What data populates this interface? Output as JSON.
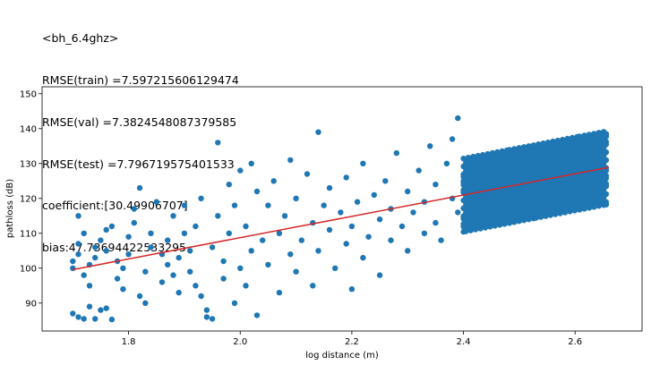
{
  "title_lines": [
    "<bh_6.4ghz>",
    "RMSE(train) =7.597215606129474",
    "RMSE(val) =7.3824548087379585",
    "RMSE(test) =7.796719575401533",
    "coefficient:[30.49906707]",
    "bias:47.73694422533295"
  ],
  "chart_data": {
    "type": "scatter",
    "xlabel": "log distance (m)",
    "ylabel": "pathloss (dB)",
    "xlim": [
      1.645,
      2.72
    ],
    "ylim": [
      82,
      152
    ],
    "xticks": [
      1.8,
      2.0,
      2.2,
      2.4,
      2.6
    ],
    "xtick_labels": [
      "1.8",
      "2.0",
      "2.2",
      "2.4",
      "2.6"
    ],
    "yticks": [
      90,
      100,
      110,
      120,
      130,
      140,
      150
    ],
    "ytick_labels": [
      "90",
      "100",
      "110",
      "120",
      "130",
      "140",
      "150"
    ],
    "grid": false,
    "series": [
      {
        "kind": "points",
        "color": "#1f77b4",
        "points": [
          [
            1.7,
            87
          ],
          [
            1.71,
            86
          ],
          [
            1.72,
            85.5
          ],
          [
            1.74,
            85.5
          ],
          [
            1.77,
            85.3
          ],
          [
            1.73,
            89
          ],
          [
            1.75,
            88
          ],
          [
            1.76,
            88.5
          ],
          [
            1.7,
            100
          ],
          [
            1.7,
            102
          ],
          [
            1.71,
            104
          ],
          [
            1.71,
            107
          ],
          [
            1.71,
            115
          ],
          [
            1.72,
            110
          ],
          [
            1.72,
            98
          ],
          [
            1.73,
            95
          ],
          [
            1.73,
            101
          ],
          [
            1.74,
            103
          ],
          [
            1.74,
            106
          ],
          [
            1.75,
            108
          ],
          [
            1.76,
            111
          ],
          [
            1.76,
            105
          ],
          [
            1.77,
            112
          ],
          [
            1.78,
            102
          ],
          [
            1.78,
            97
          ],
          [
            1.79,
            94
          ],
          [
            1.79,
            100
          ],
          [
            1.8,
            104
          ],
          [
            1.8,
            109
          ],
          [
            1.81,
            113
          ],
          [
            1.81,
            117
          ],
          [
            1.82,
            123
          ],
          [
            1.82,
            92
          ],
          [
            1.83,
            90
          ],
          [
            1.83,
            99
          ],
          [
            1.84,
            106
          ],
          [
            1.84,
            110
          ],
          [
            1.85,
            119
          ],
          [
            1.86,
            104
          ],
          [
            1.86,
            96
          ],
          [
            1.87,
            101
          ],
          [
            1.87,
            108
          ],
          [
            1.88,
            115
          ],
          [
            1.88,
            98
          ],
          [
            1.89,
            103
          ],
          [
            1.89,
            93
          ],
          [
            1.9,
            110
          ],
          [
            1.9,
            118
          ],
          [
            1.91,
            105
          ],
          [
            1.91,
            99
          ],
          [
            1.92,
            95
          ],
          [
            1.92,
            112
          ],
          [
            1.93,
            120
          ],
          [
            1.93,
            92
          ],
          [
            1.94,
            88
          ],
          [
            1.94,
            86
          ],
          [
            1.95,
            85.5
          ],
          [
            1.95,
            106
          ],
          [
            1.96,
            136
          ],
          [
            1.96,
            115
          ],
          [
            1.97,
            102
          ],
          [
            1.97,
            97
          ],
          [
            1.98,
            110
          ],
          [
            1.98,
            124
          ],
          [
            1.99,
            90
          ],
          [
            1.99,
            118
          ],
          [
            2.0,
            128
          ],
          [
            2.0,
            100
          ],
          [
            2.01,
            95
          ],
          [
            2.01,
            112
          ],
          [
            2.02,
            105
          ],
          [
            2.02,
            130
          ],
          [
            2.03,
            122
          ],
          [
            2.03,
            86.5
          ],
          [
            2.04,
            108
          ],
          [
            2.05,
            118
          ],
          [
            2.05,
            101
          ],
          [
            2.06,
            125
          ],
          [
            2.07,
            110
          ],
          [
            2.07,
            93
          ],
          [
            2.08,
            115
          ],
          [
            2.09,
            131
          ],
          [
            2.09,
            104
          ],
          [
            2.1,
            120
          ],
          [
            2.1,
            99
          ],
          [
            2.11,
            108
          ],
          [
            2.12,
            127
          ],
          [
            2.13,
            113
          ],
          [
            2.13,
            95
          ],
          [
            2.14,
            139
          ],
          [
            2.14,
            105
          ],
          [
            2.15,
            118
          ],
          [
            2.16,
            111
          ],
          [
            2.16,
            123
          ],
          [
            2.17,
            100
          ],
          [
            2.18,
            116
          ],
          [
            2.19,
            126
          ],
          [
            2.19,
            107
          ],
          [
            2.2,
            94
          ],
          [
            2.2,
            112
          ],
          [
            2.21,
            119
          ],
          [
            2.22,
            130
          ],
          [
            2.22,
            103
          ],
          [
            2.23,
            109
          ],
          [
            2.24,
            121
          ],
          [
            2.25,
            114
          ],
          [
            2.25,
            98
          ],
          [
            2.26,
            125
          ],
          [
            2.27,
            117
          ],
          [
            2.27,
            108
          ],
          [
            2.28,
            133
          ],
          [
            2.29,
            112
          ],
          [
            2.3,
            122
          ],
          [
            2.3,
            105
          ],
          [
            2.31,
            116
          ],
          [
            2.32,
            128
          ],
          [
            2.33,
            110
          ],
          [
            2.33,
            119
          ],
          [
            2.34,
            135
          ],
          [
            2.35,
            124
          ],
          [
            2.35,
            113
          ],
          [
            2.36,
            108
          ],
          [
            2.37,
            130
          ],
          [
            2.38,
            120
          ],
          [
            2.38,
            137
          ],
          [
            2.39,
            116
          ],
          [
            2.39,
            143
          ],
          [
            2.4,
            125
          ]
        ]
      },
      {
        "kind": "fit-line",
        "color": "#d62728",
        "points": [
          [
            1.7,
            99.6
          ],
          [
            2.66,
            128.9
          ]
        ]
      }
    ]
  }
}
